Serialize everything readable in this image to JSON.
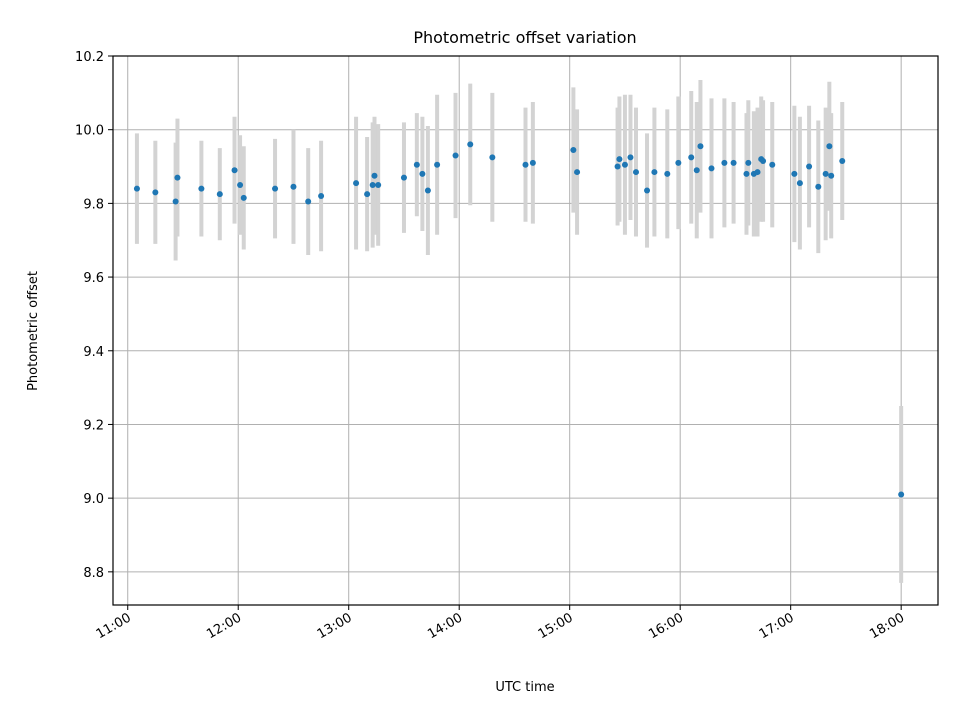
{
  "chart_data": {
    "type": "scatter",
    "title": "Photometric offset variation",
    "xlabel": "UTC time",
    "ylabel": "Photometric offset",
    "grid": true,
    "legend": "none",
    "x_ticks": [
      "11:00",
      "12:00",
      "13:00",
      "14:00",
      "15:00",
      "16:00",
      "17:00",
      "18:00"
    ],
    "y_ticks": [
      "8.8",
      "9.0",
      "9.2",
      "9.4",
      "9.6",
      "9.8",
      "10.0",
      "10.2"
    ],
    "xlim": [
      "10:52",
      "18:20"
    ],
    "ylim": [
      8.71,
      10.2
    ],
    "colors": {
      "point": "#1f77b4",
      "errorbar": "#d3d3d3",
      "grid": "#b0b0b0"
    },
    "series": [
      {
        "x": [
          "11:05",
          "11:15",
          "11:26",
          "11:27",
          "11:40",
          "11:50",
          "11:58",
          "12:01",
          "12:03",
          "12:20",
          "12:30",
          "12:38",
          "12:45",
          "13:04",
          "13:10",
          "13:13",
          "13:14",
          "13:16",
          "13:30",
          "13:37",
          "13:40",
          "13:43",
          "13:48",
          "13:58",
          "14:06",
          "14:18",
          "14:36",
          "14:40",
          "15:02",
          "15:04",
          "15:26",
          "15:27",
          "15:30",
          "15:33",
          "15:36",
          "15:42",
          "15:46",
          "15:53",
          "15:59",
          "16:06",
          "16:09",
          "16:11",
          "16:17",
          "16:24",
          "16:29",
          "16:36",
          "16:37",
          "16:40",
          "16:42",
          "16:44",
          "16:45",
          "16:50",
          "17:02",
          "17:05",
          "17:10",
          "17:15",
          "17:19",
          "17:21",
          "17:22",
          "17:28"
        ],
        "y": [
          9.84,
          9.83,
          9.805,
          9.87,
          9.84,
          9.825,
          9.89,
          9.85,
          9.815,
          9.84,
          9.845,
          9.805,
          9.82,
          9.855,
          9.825,
          9.85,
          9.875,
          9.85,
          9.87,
          9.905,
          9.88,
          9.835,
          9.905,
          9.93,
          9.96,
          9.925,
          9.905,
          9.91,
          9.945,
          9.885,
          9.9,
          9.92,
          9.905,
          9.925,
          9.885,
          9.835,
          9.885,
          9.88,
          9.91,
          9.925,
          9.89,
          9.955,
          9.895,
          9.91,
          9.91,
          9.88,
          9.91,
          9.88,
          9.885,
          9.92,
          9.915,
          9.905,
          9.88,
          9.855,
          9.9,
          9.845,
          9.88,
          9.955,
          9.875,
          9.915
        ],
        "err": [
          0.15,
          0.14,
          0.16,
          0.16,
          0.13,
          0.125,
          0.145,
          0.135,
          0.14,
          0.135,
          0.155,
          0.145,
          0.15,
          0.18,
          0.155,
          0.17,
          0.16,
          0.165,
          0.15,
          0.14,
          0.155,
          0.175,
          0.19,
          0.17,
          0.165,
          0.175,
          0.155,
          0.165,
          0.17,
          0.17,
          0.16,
          0.17,
          0.19,
          0.17,
          0.175,
          0.155,
          0.175,
          0.175,
          0.18,
          0.18,
          0.185,
          0.18,
          0.19,
          0.175,
          0.165,
          0.165,
          0.17,
          0.17,
          0.175,
          0.17,
          0.165,
          0.17,
          0.185,
          0.18,
          0.165,
          0.18,
          0.18,
          0.175,
          0.17,
          0.16
        ]
      },
      {
        "x": [
          "18:00"
        ],
        "y": [
          9.01
        ],
        "err": [
          0.24
        ]
      }
    ]
  }
}
